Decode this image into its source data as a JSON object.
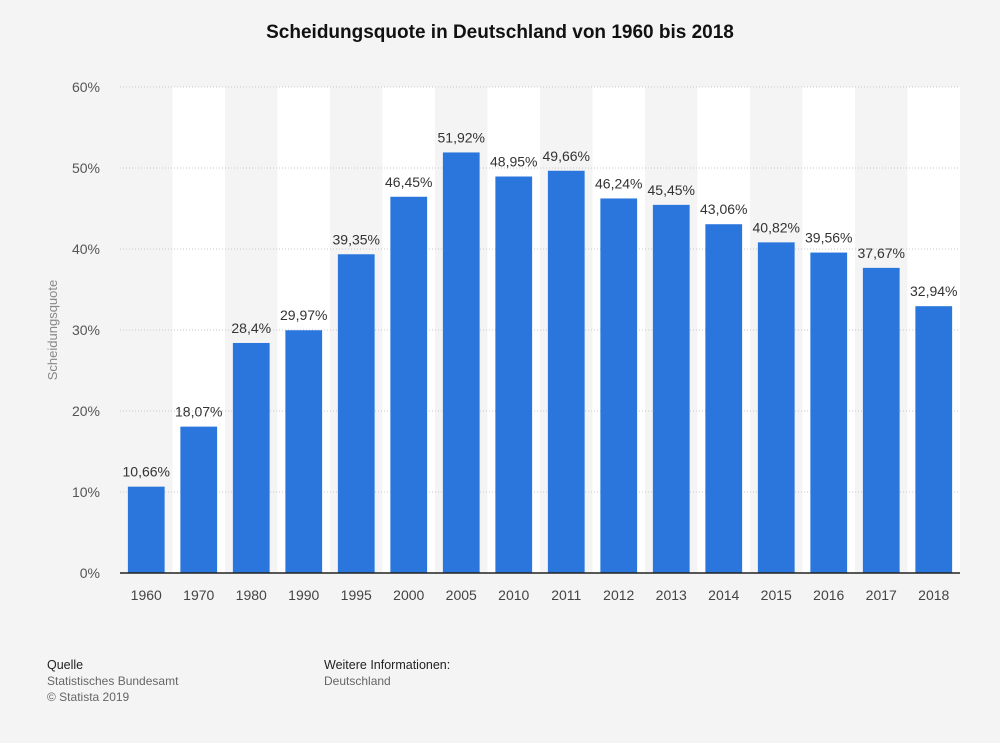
{
  "chart_data": {
    "type": "bar",
    "title": "Scheidungsquote in Deutschland von 1960 bis 2018",
    "ylabel": "Scheidungsquote",
    "xlabel": "",
    "categories": [
      "1960",
      "1970",
      "1980",
      "1990",
      "1995",
      "2000",
      "2005",
      "2010",
      "2011",
      "2012",
      "2013",
      "2014",
      "2015",
      "2016",
      "2017",
      "2018"
    ],
    "values": [
      10.66,
      18.07,
      28.4,
      29.97,
      39.35,
      46.45,
      51.92,
      48.95,
      49.66,
      46.24,
      45.45,
      43.06,
      40.82,
      39.56,
      37.67,
      32.94
    ],
    "value_labels": [
      "10,66%",
      "18,07%",
      "28,4%",
      "29,97%",
      "39,35%",
      "46,45%",
      "51,92%",
      "48,95%",
      "49,66%",
      "46,24%",
      "45,45%",
      "43,06%",
      "40,82%",
      "39,56%",
      "37,67%",
      "32,94%"
    ],
    "ylim": [
      0,
      60
    ],
    "yticks": [
      0,
      10,
      20,
      30,
      40,
      50,
      60
    ],
    "ytick_labels": [
      "0%",
      "10%",
      "20%",
      "30%",
      "40%",
      "50%",
      "60%"
    ],
    "grid": true,
    "colors": {
      "bar": "#2a76dd",
      "band": "#ffffff",
      "grid": "#c8c8c8"
    }
  },
  "footer": {
    "source_heading": "Quelle",
    "source_text": "Statistisches Bundesamt",
    "copyright": "© Statista 2019",
    "info_heading": "Weitere Informationen:",
    "info_text": "Deutschland"
  }
}
